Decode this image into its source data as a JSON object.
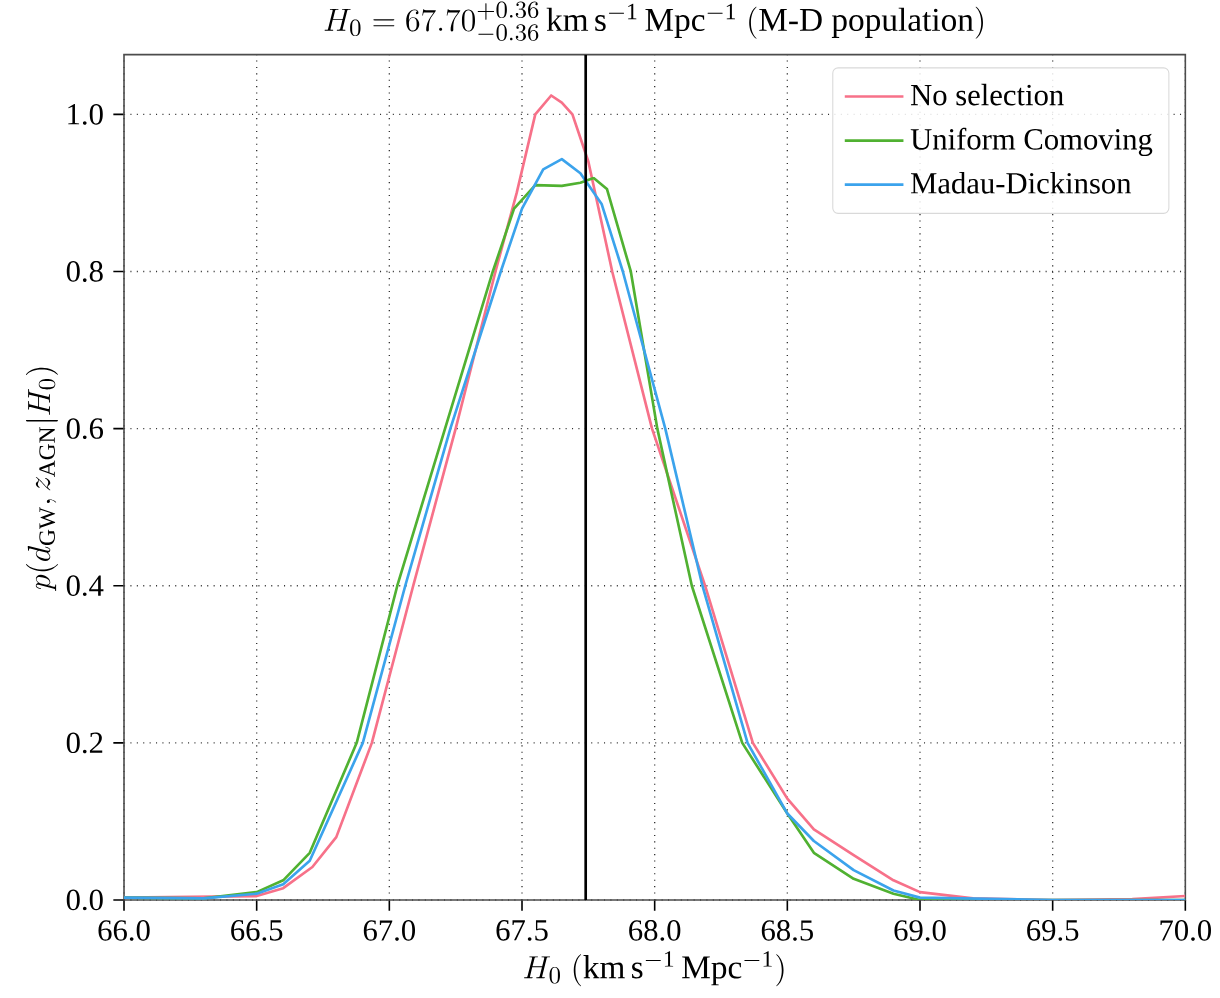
{
  "chart_data": {
    "type": "line",
    "title": "H_0 = 67.70^{+0.36}_{-0.36}\\,\\mathrm{km\\,s^{-1}\\,Mpc^{-1}}\\ \\mathrm{(M\\text{-}D\\ population)}",
    "xlabel": "H_0\\ (\\mathrm{km\\,s^{-1}\\,Mpc^{-1}})",
    "ylabel": "p(d_{\\mathrm{GW}}, z_{\\mathrm{AGN}} | H_0)",
    "xlim": [
      66.0,
      70.0
    ],
    "ylim": [
      0,
      1.076
    ],
    "xticks": [
      {
        "value": 66.0,
        "label": "66.0"
      },
      {
        "value": 66.5,
        "label": "66.5"
      },
      {
        "value": 67.0,
        "label": "67.0"
      },
      {
        "value": 67.5,
        "label": "67.5"
      },
      {
        "value": 68.0,
        "label": "68.0"
      },
      {
        "value": 68.5,
        "label": "68.5"
      },
      {
        "value": 69.0,
        "label": "69.0"
      },
      {
        "value": 69.5,
        "label": "69.5"
      },
      {
        "value": 70.0,
        "label": "70.0"
      }
    ],
    "yticks": [
      {
        "value": 0,
        "label": "0.0"
      },
      {
        "value": 0.2,
        "label": "0.2"
      },
      {
        "value": 0.4,
        "label": "0.4"
      },
      {
        "value": 0.6,
        "label": "0.6"
      },
      {
        "value": 0.8,
        "label": "0.8"
      },
      {
        "value": 1.0,
        "label": "1.0"
      }
    ],
    "grid": true,
    "legend": "top right",
    "marker": "none",
    "line_style": "solid",
    "ref_lines": [
      {
        "axis": "x",
        "value": 67.74,
        "color": "#000000"
      }
    ],
    "series": [
      {
        "name": "No selection",
        "color": "#f77189",
        "x": [
          66.0,
          66.5,
          66.6,
          66.71,
          66.8,
          66.934,
          67.09,
          67.25,
          67.4,
          67.48,
          67.55,
          67.61,
          67.65,
          67.69,
          67.75,
          67.84,
          67.99,
          68.19,
          68.37,
          68.5,
          68.6,
          68.75,
          68.9,
          69.0,
          69.2,
          69.5,
          69.8,
          70.0
        ],
        "values": [
          0.003,
          0.005,
          0.015,
          0.042,
          0.08,
          0.2,
          0.4,
          0.6,
          0.8,
          0.9,
          1.0,
          1.024,
          1.015,
          1.0,
          0.94,
          0.8,
          0.6,
          0.4,
          0.2,
          0.129,
          0.09,
          0.057,
          0.025,
          0.01,
          0.002,
          0.0,
          0.001,
          0.005
        ]
      },
      {
        "name": "Uniform Comoving",
        "color": "#50b131",
        "x": [
          66.0,
          66.3,
          66.5,
          66.6,
          66.7,
          66.877,
          67.03,
          67.21,
          67.39,
          67.47,
          67.55,
          67.65,
          67.72,
          67.77,
          67.82,
          67.91,
          68.01,
          68.14,
          68.33,
          68.5,
          68.6,
          68.75,
          68.9,
          69.0,
          69.5,
          70.0
        ],
        "values": [
          0.003,
          0.002,
          0.01,
          0.025,
          0.06,
          0.2,
          0.4,
          0.6,
          0.8,
          0.88,
          0.91,
          0.909,
          0.913,
          0.919,
          0.905,
          0.8,
          0.6,
          0.4,
          0.2,
          0.11,
          0.06,
          0.027,
          0.008,
          0.0,
          0.0,
          0.0
        ]
      },
      {
        "name": "Madau-Dickinson",
        "color": "#3ba3ec",
        "x": [
          66.0,
          66.3,
          66.5,
          66.6,
          66.7,
          66.9,
          67.06,
          67.23,
          67.42,
          67.5,
          67.58,
          67.65,
          67.72,
          67.8,
          67.88,
          68.04,
          68.18,
          68.35,
          68.5,
          68.6,
          68.75,
          68.9,
          69.0,
          69.5,
          70.0
        ],
        "values": [
          0.003,
          0.002,
          0.008,
          0.02,
          0.05,
          0.2,
          0.4,
          0.6,
          0.8,
          0.88,
          0.93,
          0.943,
          0.925,
          0.886,
          0.8,
          0.6,
          0.4,
          0.2,
          0.11,
          0.075,
          0.038,
          0.012,
          0.003,
          0.0,
          0.0
        ]
      }
    ]
  }
}
